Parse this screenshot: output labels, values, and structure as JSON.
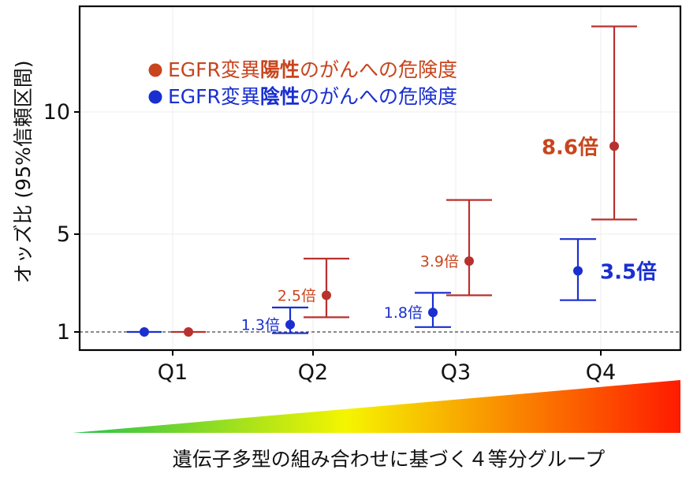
{
  "chart_data": {
    "type": "scatter",
    "ylabel": "オッズ比 (95%信頼区間)",
    "yticks": [
      1,
      5,
      10
    ],
    "ylim": [
      0.3,
      14.5
    ],
    "categories": [
      "Q1",
      "Q2",
      "Q3",
      "Q4"
    ],
    "grid": true,
    "reference_line": 1,
    "legend_position": "top-left",
    "series": [
      {
        "name": "EGFR変異陽性のがんへの危険度",
        "legend_parts": [
          "EGFR変異",
          "陽性",
          "のがんへの危険度"
        ],
        "color": "#b8312f",
        "label_color": "#c8451e",
        "points": [
          {
            "x": "Q1",
            "or": 1.0,
            "ci": [
              1.0,
              1.0
            ],
            "label": ""
          },
          {
            "x": "Q2",
            "or": 2.5,
            "ci": [
              1.6,
              4.0
            ],
            "label": "2.5倍"
          },
          {
            "x": "Q3",
            "or": 3.9,
            "ci": [
              2.5,
              6.4
            ],
            "label": "3.9倍"
          },
          {
            "x": "Q4",
            "or": 8.6,
            "ci": [
              5.6,
              13.5
            ],
            "label": "8.6倍"
          }
        ]
      },
      {
        "name": "EGFR変異陰性のがんへの危険度",
        "legend_parts": [
          "EGFR変異",
          "陰性",
          "のがんへの危険度"
        ],
        "color": "#1a2fd0",
        "label_color": "#1a2fd0",
        "points": [
          {
            "x": "Q1",
            "or": 1.0,
            "ci": [
              1.0,
              1.0
            ],
            "label": ""
          },
          {
            "x": "Q2",
            "or": 1.3,
            "ci": [
              0.95,
              2.0
            ],
            "label": "1.3倍"
          },
          {
            "x": "Q3",
            "or": 1.8,
            "ci": [
              1.2,
              2.6
            ],
            "label": "1.8倍"
          },
          {
            "x": "Q4",
            "or": 3.5,
            "ci": [
              2.3,
              4.8
            ],
            "label": "3.5倍"
          }
        ]
      }
    ]
  },
  "gradient": {
    "caption": "遺伝子多型の組み合わせに基づく４等分グループ",
    "colors": [
      "#22c24a",
      "#f5f500",
      "#ff1a00"
    ]
  }
}
